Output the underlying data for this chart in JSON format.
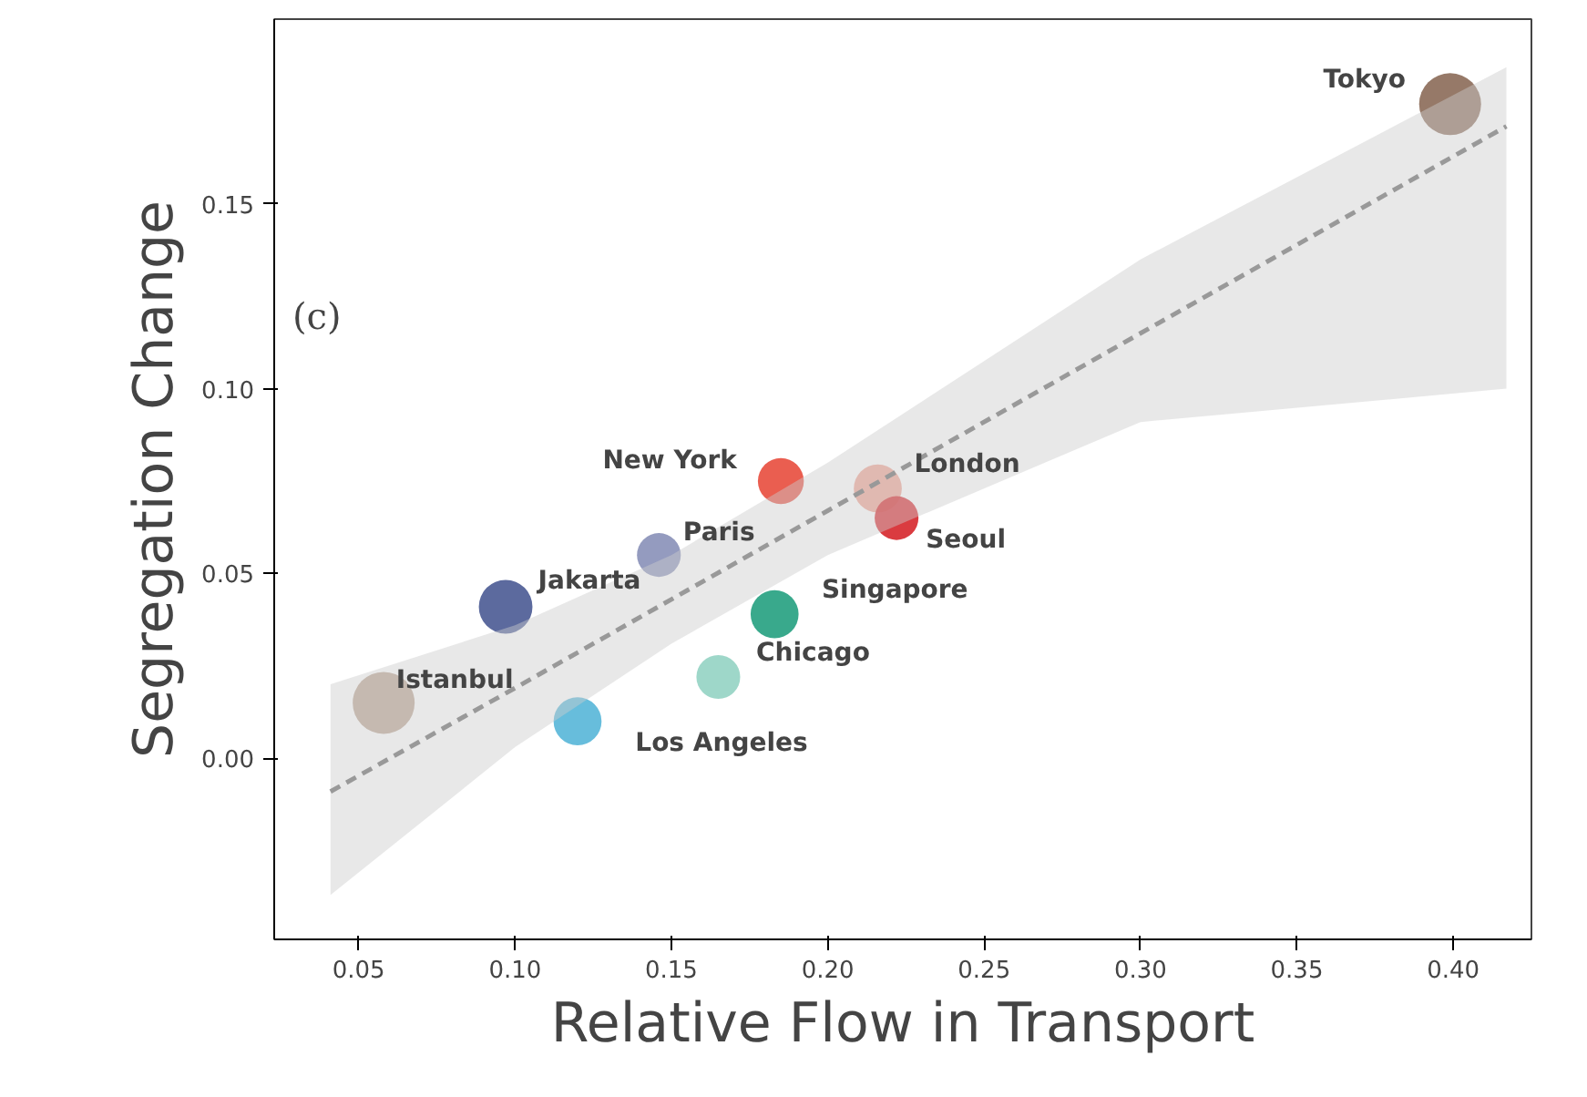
{
  "chart_data": {
    "type": "bubble",
    "xlabel": "Relative Flow in Transport",
    "ylabel": "Segregation Change",
    "xlim": [
      0.023,
      0.425
    ],
    "ylim": [
      -0.049,
      0.2
    ],
    "xticks": [
      0.05,
      {
        "value": 0.1,
        "label": "0.10"
      },
      0.15,
      {
        "value": 0.2,
        "label": "0.20"
      },
      0.25,
      {
        "value": 0.3,
        "label": "0.30"
      },
      0.35,
      {
        "value": 0.4,
        "label": "0.40"
      }
    ],
    "yticks": [
      {
        "value": 0,
        "label": "0.00"
      },
      0.05,
      {
        "value": 0.1,
        "label": "0.10"
      },
      0.15
    ],
    "grid": false,
    "series": [
      {
        "x": [
          0.399,
          0.058,
          0.097,
          0.12,
          0.146,
          0.165,
          0.183,
          0.185,
          0.216,
          0.222
        ],
        "values": [
          0.177,
          0.015,
          0.041,
          0.01,
          0.055,
          0.022,
          0.039,
          0.075,
          0.073,
          0.065
        ],
        "sizes": [
          1,
          1,
          0.75,
          0.6,
          0.5,
          0.5,
          0.6,
          0.55,
          0.6,
          0.5
        ],
        "colors": [
          "#8b6a58",
          "#b8a08e",
          "#4a5a93",
          "#56b6d8",
          "#8890b8",
          "#93d3c3",
          "#23a07f",
          "#e84d3d",
          "#f0a090",
          "#d6262b"
        ]
      },
      {
        "type": "line",
        "color": "#999999",
        "line_style": "dashed",
        "x": [
          0.041,
          0.1,
          0.15,
          0.2,
          0.3,
          0.417
        ],
        "values": [
          -0.009,
          0.019,
          0.043,
          0.067,
          0.115,
          0.171
        ],
        "lower": [
          -0.037,
          0.003,
          0.031,
          0.055,
          0.091,
          0.1
        ],
        "upper": [
          0.02,
          0.036,
          0.055,
          0.08,
          0.135,
          0.187
        ]
      }
    ],
    "annotations": [
      {
        "text": "Tokyo",
        "x": 0.399,
        "y": 0.177
      },
      {
        "text": "Istanbul",
        "x": 0.058,
        "y": 0.015
      },
      {
        "text": "Jakarta",
        "x": 0.097,
        "y": 0.041
      },
      {
        "text": "Los Angeles",
        "x": 0.12,
        "y": 0.01
      },
      {
        "text": "Paris",
        "x": 0.146,
        "y": 0.055
      },
      {
        "text": "Chicago",
        "x": 0.165,
        "y": 0.022
      },
      {
        "text": "Singapore",
        "x": 0.183,
        "y": 0.039
      },
      {
        "text": "New York",
        "x": 0.185,
        "y": 0.075
      },
      {
        "text": "London",
        "x": 0.216,
        "y": 0.073
      },
      {
        "text": "Seoul",
        "x": 0.222,
        "y": 0.065
      },
      "(c)"
    ]
  }
}
